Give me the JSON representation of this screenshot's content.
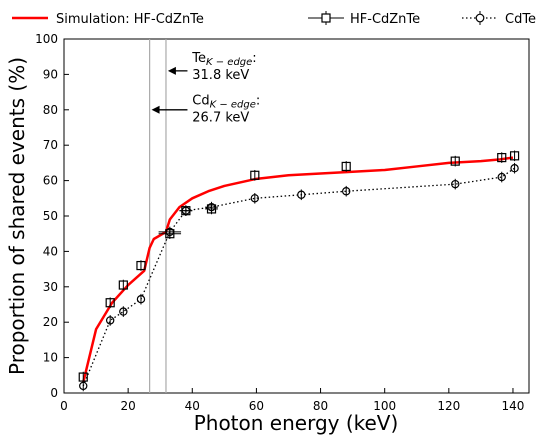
{
  "chart_data": {
    "type": "line",
    "title": "",
    "xlabel": "Photon energy (keV)",
    "ylabel": "Proportion of shared events (%)",
    "xlim": [
      0,
      145
    ],
    "ylim": [
      0,
      100
    ],
    "xticks": [
      0,
      20,
      40,
      60,
      80,
      100,
      120,
      140
    ],
    "yticks": [
      0,
      10,
      20,
      30,
      40,
      50,
      60,
      70,
      80,
      90,
      100
    ],
    "grid": false,
    "legend_position": "top",
    "series": [
      {
        "name": "Simulation: HF-CdZnTe",
        "style": "solid",
        "color": "#ff0000",
        "x": [
          6,
          10,
          15,
          20,
          25,
          26.7,
          28,
          31.8,
          33,
          36,
          40,
          45,
          50,
          60,
          70,
          80,
          90,
          100,
          110,
          120,
          130,
          136,
          140
        ],
        "y": [
          3,
          18,
          25.5,
          30.5,
          34.5,
          41,
          43.5,
          45.5,
          49,
          52.5,
          55,
          57,
          58.5,
          60.5,
          61.5,
          62,
          62.5,
          63,
          64,
          65,
          65.5,
          66,
          66.5
        ]
      },
      {
        "name": "HF-CdZnTe",
        "style": "markers",
        "marker": "square",
        "color": "#000000",
        "x": [
          6,
          14.4,
          18.5,
          24,
          33,
          38,
          46,
          59.5,
          88,
          122,
          136.5,
          140.5
        ],
        "y": [
          4.5,
          25.5,
          30.5,
          36,
          45,
          51.5,
          52,
          61.5,
          64,
          65.5,
          66.5,
          67
        ],
        "yerr": [
          1.5,
          1.5,
          1.5,
          1.5,
          1.5,
          1.5,
          1.5,
          1.5,
          1.5,
          1.5,
          1.5,
          1.5
        ],
        "xerr": [
          0,
          0,
          0,
          0,
          3.5,
          2,
          2,
          0,
          0,
          0,
          0,
          0
        ]
      },
      {
        "name": "CdTe",
        "style": "dotted",
        "marker": "circle",
        "color": "#000000",
        "x": [
          6,
          14.4,
          18.5,
          24,
          33,
          38,
          46,
          59.5,
          74,
          88,
          122,
          136.5,
          140.5
        ],
        "y": [
          2,
          20.5,
          23,
          26.5,
          45.5,
          51.5,
          52.5,
          55,
          56,
          57,
          59,
          61,
          63.5
        ],
        "yerr": [
          1.5,
          1.5,
          1.5,
          1.5,
          1.5,
          1.5,
          1.5,
          1.5,
          1.5,
          1.5,
          1.5,
          1.5,
          1.5
        ],
        "xerr": [
          0,
          0,
          0,
          0,
          3.5,
          2,
          2,
          0,
          0,
          0,
          0,
          0,
          0
        ]
      }
    ],
    "vlines": [
      {
        "x": 26.7,
        "color": "#aaaaaa"
      },
      {
        "x": 31.8,
        "color": "#aaaaaa"
      }
    ],
    "annotations": [
      {
        "element": "Te",
        "subscript": "K − edge",
        "suffix": ":",
        "value": "31.8 keV",
        "text_x": 40,
        "text_y": 93.5,
        "arrow_from": [
          38.5,
          91
        ],
        "arrow_to": [
          32.4,
          91
        ]
      },
      {
        "element": "Cd",
        "subscript": "K − edge",
        "suffix": ":",
        "value": "26.7 keV",
        "text_x": 40,
        "text_y": 81.5,
        "arrow_from": [
          38.5,
          80
        ],
        "arrow_to": [
          27.3,
          80
        ]
      }
    ]
  }
}
